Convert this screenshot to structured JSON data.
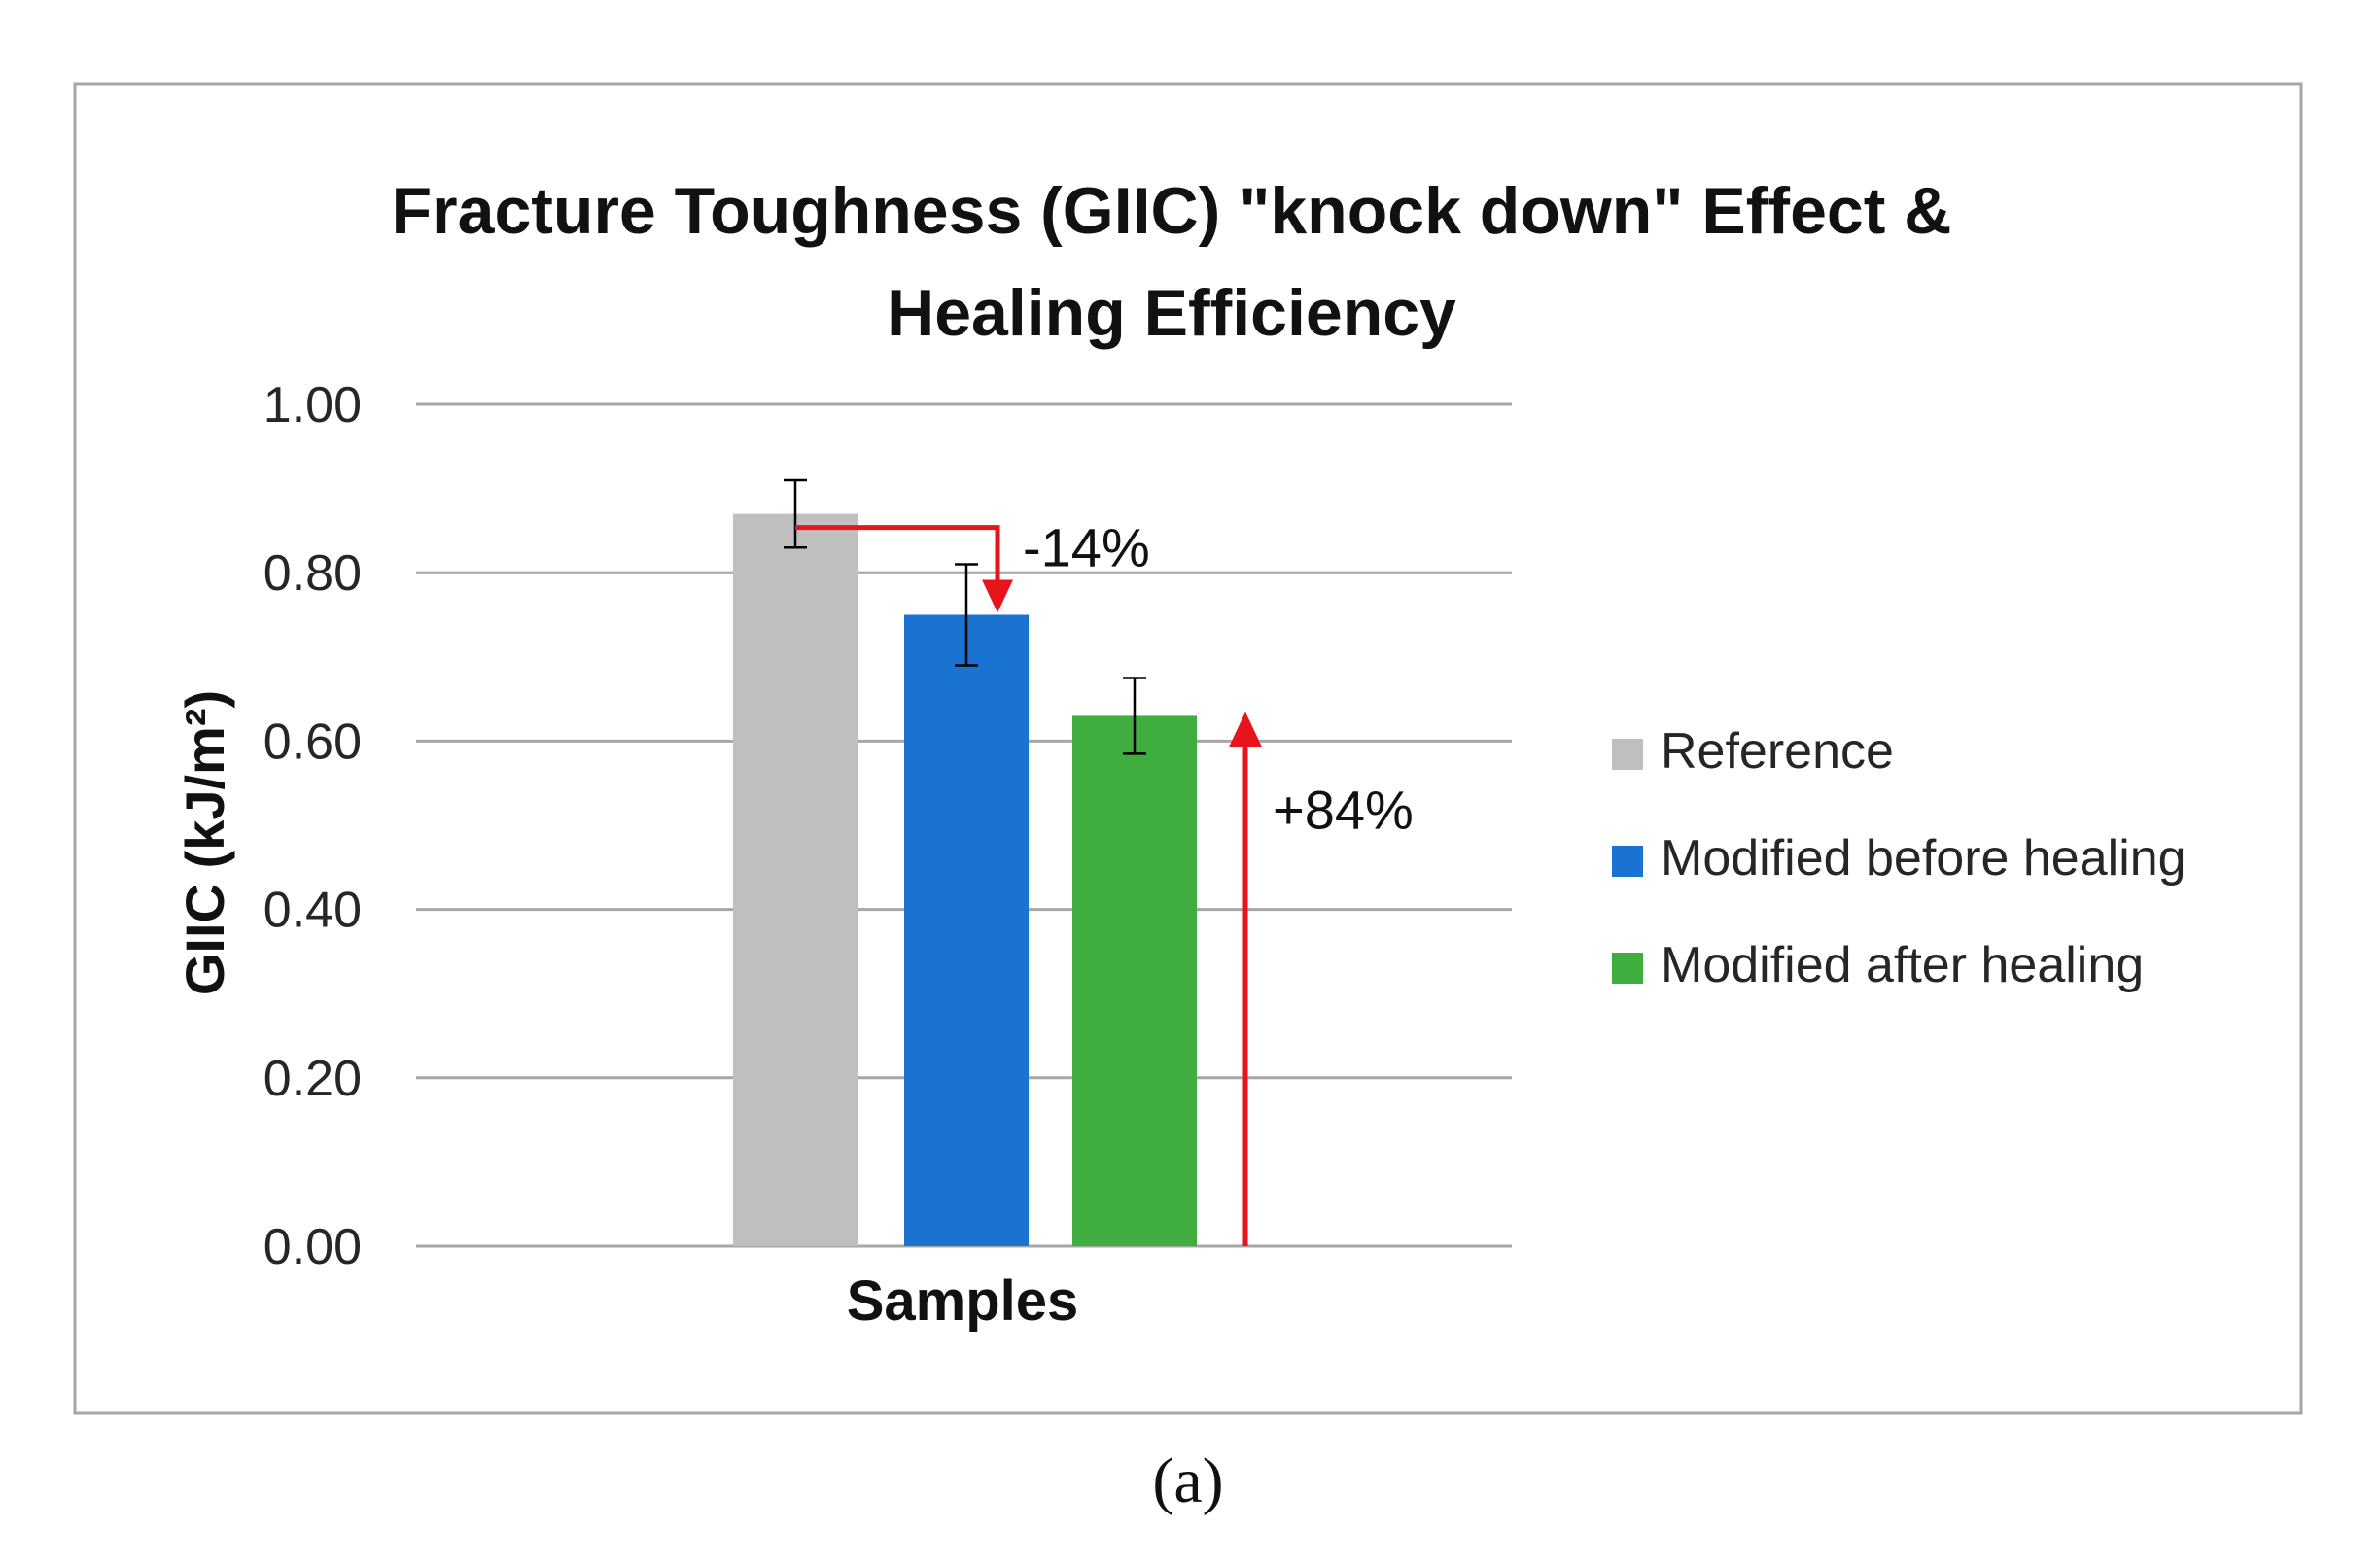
{
  "chart_data": {
    "type": "bar",
    "title_lines": [
      "Fracture Toughness (GIIC) \"knock down\" Effect &",
      "Healing Efficiency"
    ],
    "xlabel": "Samples",
    "ylabel": "GIIC (kJ/m²)",
    "ylim": [
      0,
      1.0
    ],
    "yticks": [
      "0.00",
      "0.20",
      "0.40",
      "0.60",
      "0.80",
      "1.00"
    ],
    "grid": true,
    "legend_position": "right",
    "series": [
      {
        "name": "Reference",
        "value": 0.87,
        "error": 0.04,
        "color": "#bfbfbf"
      },
      {
        "name": "Modified before healing",
        "value": 0.75,
        "error": 0.06,
        "color": "#1a73d0"
      },
      {
        "name": "Modified after healing",
        "value": 0.63,
        "error": 0.045,
        "color": "#3fae3f"
      }
    ],
    "annotations": [
      {
        "text": "-14%",
        "type": "decrease",
        "from_series": 0,
        "to_series": 1
      },
      {
        "text": "+84%",
        "type": "increase",
        "to_series": 2
      }
    ],
    "annotation_color": "#e8141b"
  },
  "caption": "(a)"
}
